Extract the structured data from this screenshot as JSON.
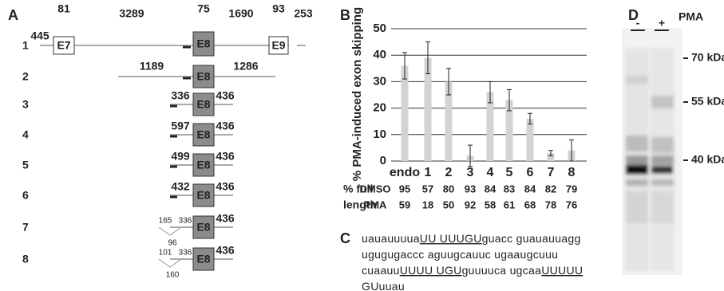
{
  "panel_a": {
    "label": "A",
    "rows": [
      {
        "label": "1",
        "numbers": [
          445,
          81,
          3289,
          75,
          1690,
          93,
          253
        ],
        "exons": [
          "E7",
          "E8",
          "E9"
        ]
      },
      {
        "label": "2",
        "numbers": [
          1189,
          1286
        ],
        "exons": [
          "E8"
        ]
      },
      {
        "label": "3",
        "numbers": [
          336,
          436
        ],
        "exons": [
          "E8"
        ]
      },
      {
        "label": "4",
        "numbers": [
          597,
          436
        ],
        "exons": [
          "E8"
        ]
      },
      {
        "label": "5",
        "numbers": [
          499,
          436
        ],
        "exons": [
          "E8"
        ]
      },
      {
        "label": "6",
        "numbers": [
          432,
          436
        ],
        "exons": [
          "E8"
        ]
      },
      {
        "label": "7",
        "numbers": [
          165,
          336,
          96,
          436
        ],
        "exons": [
          "E8"
        ]
      },
      {
        "label": "8",
        "numbers": [
          101,
          336,
          160,
          436
        ],
        "exons": [
          "E8"
        ]
      }
    ]
  },
  "chart_data": {
    "type": "bar",
    "label": "B",
    "ylabel": "% PMA-induced exon skipping",
    "categories": [
      "endo",
      "1",
      "2",
      "3",
      "4",
      "5",
      "6",
      "7",
      "8"
    ],
    "values": [
      36,
      39,
      30,
      2,
      26,
      23,
      16,
      3,
      4
    ],
    "errors": [
      5,
      6,
      5,
      4,
      4,
      4,
      2,
      1,
      4
    ],
    "color": "#d3d3d3",
    "ylim": [
      0,
      50
    ],
    "yticks": [
      0,
      10,
      20,
      30,
      40,
      50
    ],
    "grid": true,
    "table": {
      "header": [
        "% full",
        "length"
      ],
      "rows": [
        {
          "name": "DMSO",
          "values": [
            95,
            57,
            80,
            93,
            84,
            83,
            84,
            82,
            79
          ]
        },
        {
          "name": "PMA",
          "values": [
            59,
            18,
            50,
            92,
            58,
            61,
            68,
            78,
            76
          ]
        }
      ]
    }
  },
  "panel_c": {
    "label": "C",
    "lines": [
      [
        {
          "text": "uauauuuua"
        },
        {
          "underline": "UU UUUGU"
        },
        {
          "text": "guacc guauauuagg"
        }
      ],
      [
        {
          "text": "ugugugaccc aguugcauuc ugaaugcuuu"
        }
      ],
      [
        {
          "text": "cuaauu"
        },
        {
          "underline": "UUUU UGU"
        },
        {
          "text": "guuuuca ugcaa"
        },
        {
          "underline": "UUUUU"
        }
      ],
      [
        {
          "underline": "GU"
        },
        {
          "text": "uuau"
        }
      ]
    ]
  },
  "panel_d": {
    "label": "D",
    "lanes": [
      "-",
      "+"
    ],
    "treatment": "PMA",
    "markers": [
      "70 kDa",
      "55 kDa",
      "40 kDa"
    ]
  }
}
